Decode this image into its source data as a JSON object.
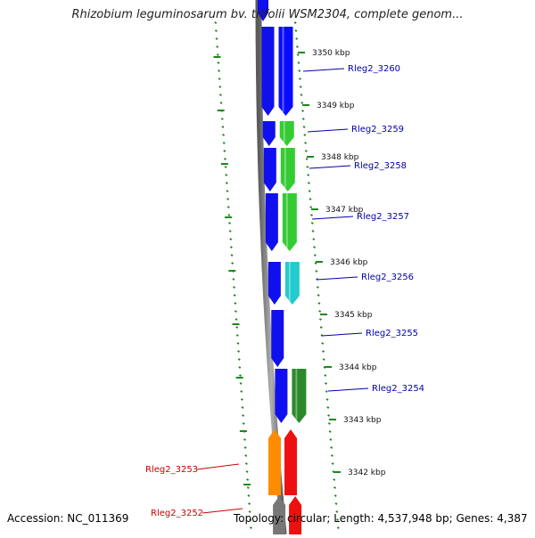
{
  "title": "Rhizobium leguminosarum bv. trifolii WSM2304, complete genom...",
  "footer": {
    "accession": "Accession: NC_011369",
    "summary": "Topology: circular; Length: 4,537,948 bp; Genes: 4,387"
  },
  "colors": {
    "forward_strand": "#1010ee",
    "reverse_strand": "#ee1010",
    "backbone": "#888888",
    "tick": "#1a8a1a",
    "label_forward": "#0000aa",
    "label_reverse": "#cc0000"
  },
  "ticks": [
    {
      "label": "3350 kbp"
    },
    {
      "label": "3349 kbp"
    },
    {
      "label": "3348 kbp"
    },
    {
      "label": "3347 kbp"
    },
    {
      "label": "3346 kbp"
    },
    {
      "label": "3345 kbp"
    },
    {
      "label": "3344 kbp"
    },
    {
      "label": "3343 kbp"
    },
    {
      "label": "3342 kbp"
    }
  ],
  "genes": [
    {
      "name": "Rleg2_3260",
      "strand": "forward",
      "cog_color": "#0a0aff"
    },
    {
      "name": "Rleg2_3259",
      "strand": "forward",
      "cog_color": "#33cc33"
    },
    {
      "name": "Rleg2_3258",
      "strand": "forward",
      "cog_color": "#33cc33"
    },
    {
      "name": "Rleg2_3257",
      "strand": "forward",
      "cog_color": "#33cc33"
    },
    {
      "name": "Rleg2_3256",
      "strand": "forward",
      "cog_color": "#22cccc"
    },
    {
      "name": "Rleg2_3255",
      "strand": "forward",
      "cog_color": null
    },
    {
      "name": "Rleg2_3254",
      "strand": "forward",
      "cog_color": "#2a8a2a"
    },
    {
      "name": "Rleg2_3253",
      "strand": "reverse",
      "cog_color": "#ff8c00"
    },
    {
      "name": "Rleg2_3252",
      "strand": "reverse",
      "cog_color": "#777777"
    }
  ]
}
